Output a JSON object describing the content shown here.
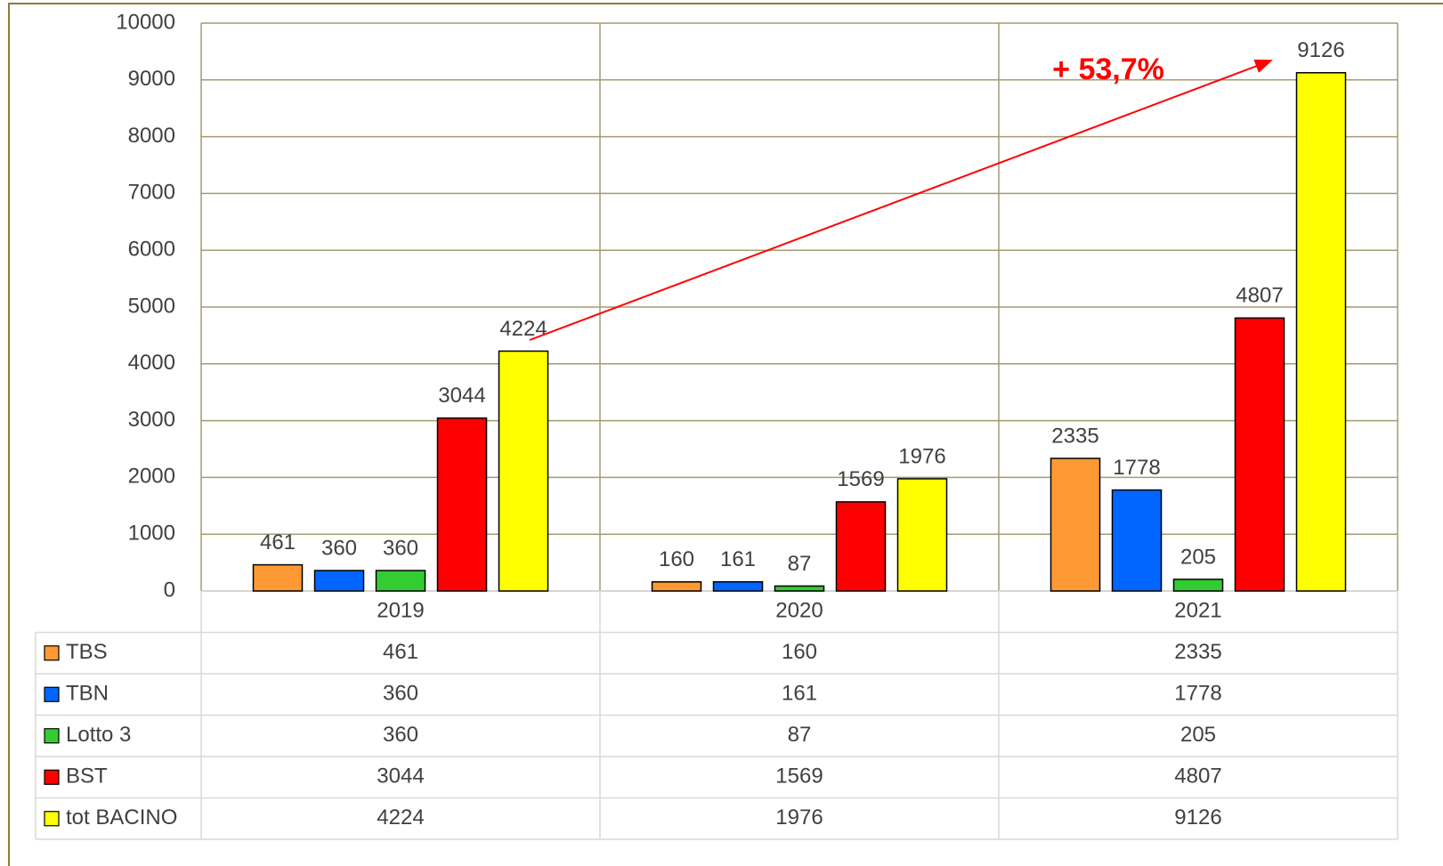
{
  "chart_data": {
    "type": "bar",
    "categories": [
      "2019",
      "2020",
      "2021"
    ],
    "series": [
      {
        "name": "TBS",
        "color": "#ff9933",
        "values": [
          461,
          160,
          2335
        ]
      },
      {
        "name": "TBN",
        "color": "#0066ff",
        "values": [
          360,
          161,
          1778
        ]
      },
      {
        "name": "Lotto 3",
        "color": "#33cc33",
        "values": [
          360,
          87,
          205
        ]
      },
      {
        "name": "BST",
        "color": "#ff0000",
        "values": [
          3044,
          1569,
          4807
        ]
      },
      {
        "name": "tot BACINO",
        "color": "#ffff00",
        "values": [
          4224,
          1976,
          9126
        ]
      }
    ],
    "ylim": [
      0,
      10000
    ],
    "yticks": [
      0,
      1000,
      2000,
      3000,
      4000,
      5000,
      6000,
      7000,
      8000,
      9000,
      10000
    ],
    "grid": true,
    "annotation": "+ 53,7%"
  }
}
